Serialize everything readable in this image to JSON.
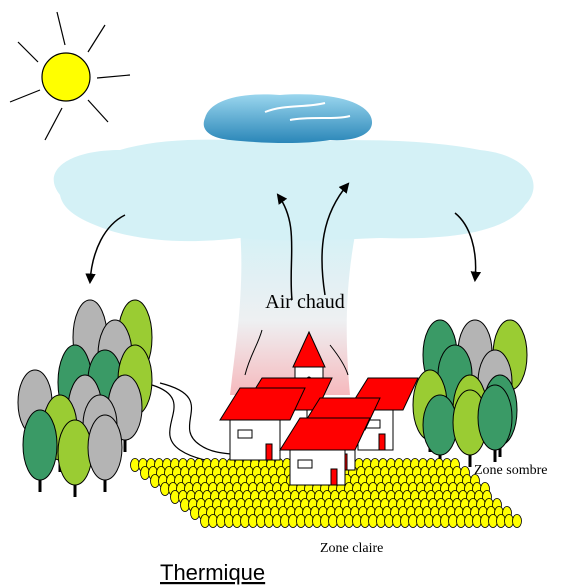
{
  "labels": {
    "warm_air": "Air chaud",
    "dark_zone": "Zone sombre",
    "light_zone": "Zone claire"
  },
  "title": "Thermique"
}
